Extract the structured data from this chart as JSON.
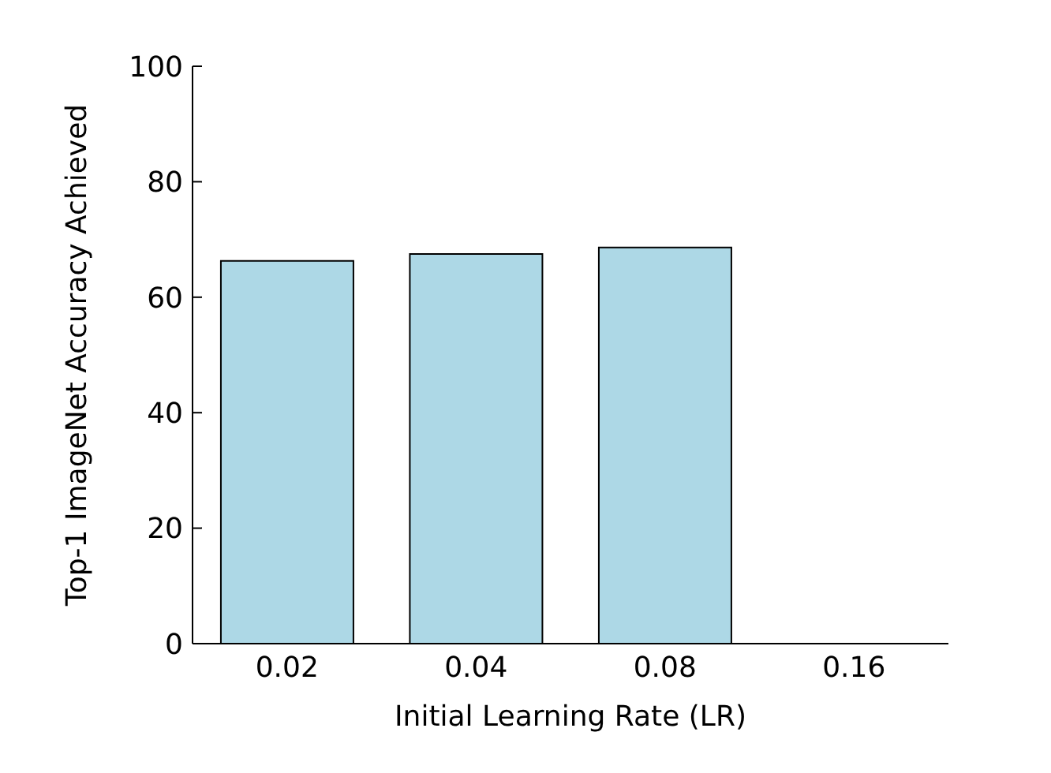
{
  "chart_data": {
    "type": "bar",
    "xlabel": "Initial Learning Rate (LR)",
    "ylabel": "Top-1 ImageNet Accuracy Achieved",
    "categories": [
      "0.02",
      "0.04",
      "0.08",
      "0.16"
    ],
    "values": [
      66.3,
      67.5,
      68.6,
      0
    ],
    "color": "#add8e6",
    "ylim": [
      0,
      100
    ],
    "yticks": [
      0,
      20,
      40,
      60,
      80,
      100
    ],
    "grid": false
  }
}
